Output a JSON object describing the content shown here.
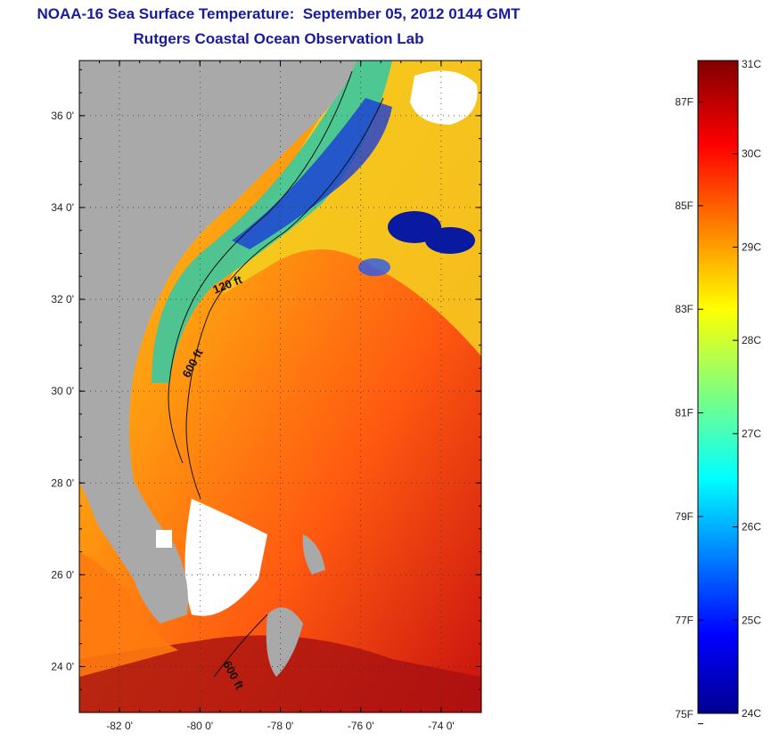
{
  "title_line1": "NOAA-16 Sea Surface Temperature:  September 05, 2012 0144 GMT",
  "title_line2": "Rutgers Coastal Ocean Observation Lab",
  "map": {
    "lat_labels": [
      "36 0'",
      "34 0'",
      "32 0'",
      "30 0'",
      "28 0'",
      "26 0'",
      "24 0'"
    ],
    "lat_values": [
      36,
      34,
      32,
      30,
      28,
      26,
      24
    ],
    "lon_labels": [
      "-82 0'",
      "-80 0'",
      "-78 0'",
      "-76 0'",
      "-74 0'"
    ],
    "lon_values": [
      -82,
      -80,
      -78,
      -76,
      -74
    ],
    "lat_range": [
      23.0,
      37.2
    ],
    "lon_range": [
      -83.0,
      -73.0
    ],
    "contour_labels": [
      "120 ft",
      "600 ft",
      "600 ft"
    ],
    "land_color": "#a9a9a9",
    "cloud_color": "#ffffff"
  },
  "colorbar": {
    "celsius_labels": [
      "31C",
      "30C",
      "29C",
      "28C",
      "27C",
      "26C",
      "25C",
      "24C"
    ],
    "celsius_values": [
      31,
      30,
      29,
      28,
      27,
      26,
      25,
      24
    ],
    "fahrenheit_labels": [
      "87F",
      "85F",
      "83F",
      "81F",
      "79F",
      "77F",
      "75F"
    ],
    "fahrenheit_values": [
      87,
      85,
      83,
      81,
      79,
      77,
      75
    ],
    "range_c": [
      24,
      31
    ],
    "colormap": "jet"
  }
}
